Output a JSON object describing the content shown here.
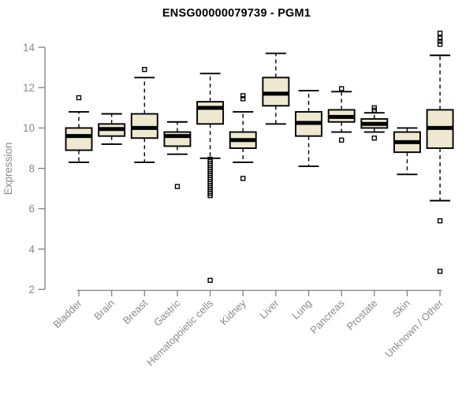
{
  "title": "ENSG00000079739 - PGM1",
  "chart_data": {
    "type": "box",
    "title": "ENSG00000079739 - PGM1",
    "ylabel": "Expression",
    "xlabel": "",
    "ylim": [
      2,
      14
    ],
    "yticks": [
      2,
      4,
      6,
      8,
      10,
      12,
      14
    ],
    "grid": false,
    "legend": "none",
    "box_fill": "#ede8cf",
    "box_stroke": "#000000",
    "axis_color": "#808080",
    "label_color": "#8a8a8a",
    "categories": [
      "Bladder",
      "Brain",
      "Breast",
      "Gastric",
      "Hematopoietic cells",
      "Kidney",
      "Liver",
      "Lung",
      "Pancreas",
      "Prostate",
      "Skin",
      "Unknown / Other"
    ],
    "series": [
      {
        "name": "Bladder",
        "whisker_low": 8.3,
        "q1": 8.9,
        "median": 9.6,
        "q3": 10.0,
        "whisker_high": 10.8,
        "outliers": [
          11.5
        ]
      },
      {
        "name": "Brain",
        "whisker_low": 9.2,
        "q1": 9.6,
        "median": 9.95,
        "q3": 10.2,
        "whisker_high": 10.7,
        "outliers": []
      },
      {
        "name": "Breast",
        "whisker_low": 8.3,
        "q1": 9.5,
        "median": 10.0,
        "q3": 10.7,
        "whisker_high": 12.5,
        "outliers": [
          12.9
        ]
      },
      {
        "name": "Gastric",
        "whisker_low": 8.7,
        "q1": 9.1,
        "median": 9.6,
        "q3": 9.8,
        "whisker_high": 10.3,
        "outliers": [
          7.1
        ]
      },
      {
        "name": "Hematopoietic cells",
        "whisker_low": 8.5,
        "q1": 10.2,
        "median": 11.0,
        "q3": 11.3,
        "whisker_high": 12.7,
        "outliers": [
          8.45,
          8.35,
          8.25,
          8.15,
          8.05,
          7.95,
          7.85,
          7.75,
          7.65,
          7.55,
          7.45,
          7.35,
          7.25,
          7.15,
          7.05,
          6.95,
          6.85,
          6.75,
          6.65,
          2.45
        ]
      },
      {
        "name": "Kidney",
        "whisker_low": 8.3,
        "q1": 9.0,
        "median": 9.4,
        "q3": 9.8,
        "whisker_high": 10.8,
        "outliers": [
          11.6,
          11.45,
          7.5
        ]
      },
      {
        "name": "Liver",
        "whisker_low": 10.2,
        "q1": 11.1,
        "median": 11.7,
        "q3": 12.5,
        "whisker_high": 13.7,
        "outliers": []
      },
      {
        "name": "Lung",
        "whisker_low": 8.1,
        "q1": 9.6,
        "median": 10.25,
        "q3": 10.8,
        "whisker_high": 11.85,
        "outliers": []
      },
      {
        "name": "Pancreas",
        "whisker_low": 9.8,
        "q1": 10.3,
        "median": 10.55,
        "q3": 10.9,
        "whisker_high": 11.8,
        "outliers": [
          11.95,
          9.4
        ]
      },
      {
        "name": "Prostate",
        "whisker_low": 9.8,
        "q1": 10.0,
        "median": 10.2,
        "q3": 10.45,
        "whisker_high": 10.75,
        "outliers": [
          11.0,
          10.88,
          9.5
        ]
      },
      {
        "name": "Skin",
        "whisker_low": 7.7,
        "q1": 8.8,
        "median": 9.3,
        "q3": 9.8,
        "whisker_high": 10.0,
        "outliers": []
      },
      {
        "name": "Unknown / Other",
        "whisker_low": 6.4,
        "q1": 9.0,
        "median": 10.0,
        "q3": 10.9,
        "whisker_high": 13.6,
        "outliers": [
          14.7,
          14.45,
          14.3,
          14.15,
          5.4,
          2.9
        ]
      }
    ]
  }
}
